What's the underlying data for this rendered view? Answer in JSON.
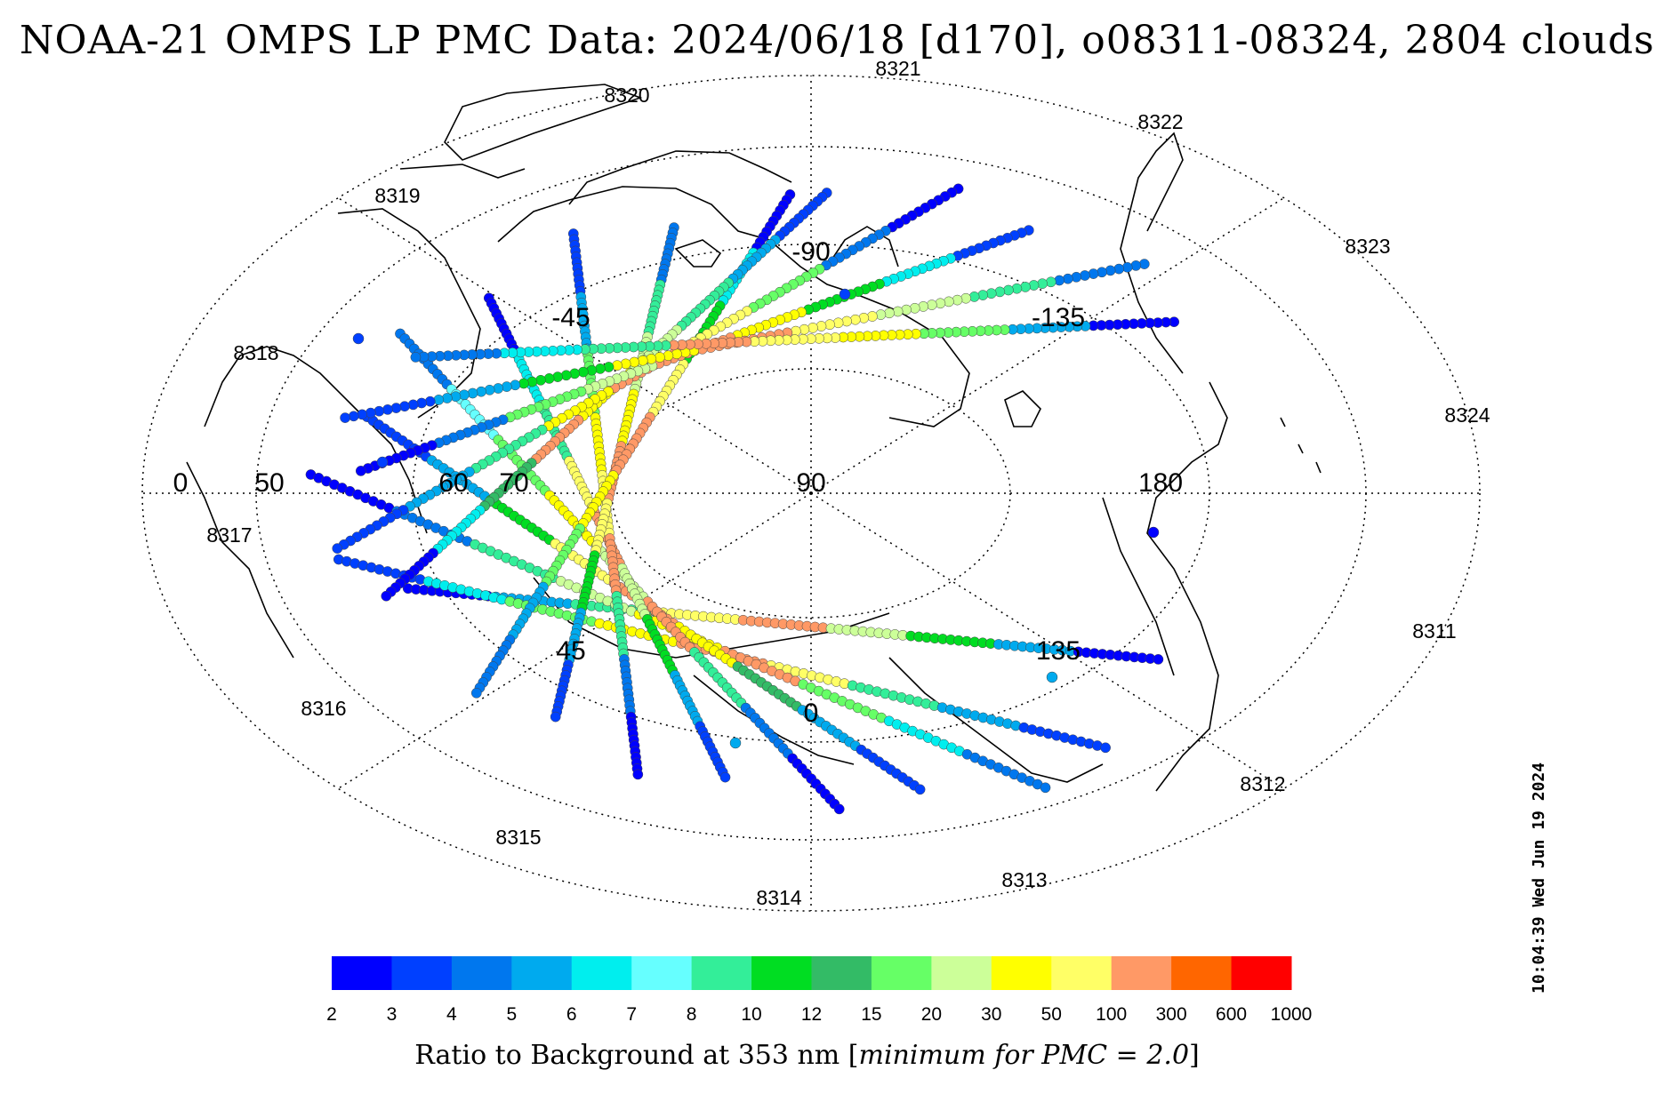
{
  "title": "NOAA-21 OMPS LP PMC Data: 2024/06/18 [d170], o08311-08324, 2804 clouds",
  "timestamp": "10:04:39 Wed Jun 19 2024",
  "colorbar": {
    "label_prefix": "Ratio to Background at 353 nm [",
    "label_italic": "minimum for PMC = 2.0",
    "label_suffix": "]",
    "ticks": [
      "2",
      "3",
      "4",
      "5",
      "6",
      "7",
      "8",
      "10",
      "12",
      "15",
      "20",
      "30",
      "50",
      "100",
      "300",
      "600",
      "1000"
    ],
    "colors": [
      "#0000ff",
      "#0040ff",
      "#0077ee",
      "#00aaee",
      "#00eeee",
      "#66ffff",
      "#33ee99",
      "#00dd22",
      "#33bb66",
      "#66ff66",
      "#ccff99",
      "#ffff00",
      "#ffff66",
      "#ff9966",
      "#ff6600",
      "#ff0000"
    ]
  },
  "map": {
    "projection": "north polar stereographic",
    "latitude_labels": [
      "0",
      "50",
      "60",
      "70",
      "90"
    ],
    "longitude_labels": [
      "-90",
      "-45",
      "-135",
      "180",
      "135",
      "45",
      "0"
    ],
    "orbit_labels": [
      "8321",
      "8320",
      "8322",
      "8319",
      "8323",
      "8318",
      "8324",
      "8317",
      "8311",
      "8316",
      "8312",
      "8315",
      "8313",
      "8314"
    ]
  },
  "tracks": [
    {
      "orbit": "8311",
      "color_seq": [
        "#0000ff",
        "#00aaee",
        "#33ee99",
        "#ffff66",
        "#ff9966",
        "#ccff99",
        "#00dd22",
        "#00aaee",
        "#0000ff"
      ]
    },
    {
      "orbit": "8312",
      "color_seq": [
        "#0040ff",
        "#00eeee",
        "#66ff66",
        "#ffff00",
        "#ff9966",
        "#ffff66",
        "#33ee99",
        "#00aaee",
        "#0040ff"
      ]
    },
    {
      "orbit": "8313",
      "color_seq": [
        "#0000ff",
        "#0077ee",
        "#33ee99",
        "#ccff99",
        "#ffff00",
        "#ff9966",
        "#66ff66",
        "#00eeee",
        "#0077ee"
      ]
    },
    {
      "orbit": "8314",
      "color_seq": [
        "#0040ff",
        "#00aaee",
        "#00dd22",
        "#ffff66",
        "#ff9966",
        "#ffff00",
        "#33bb66",
        "#00aaee",
        "#0040ff"
      ]
    },
    {
      "orbit": "8315",
      "color_seq": [
        "#0077ee",
        "#66ffff",
        "#66ff66",
        "#ffff00",
        "#ccff99",
        "#ff9966",
        "#33ee99",
        "#0077ee",
        "#0000ff"
      ]
    },
    {
      "orbit": "8316",
      "color_seq": [
        "#0000ff",
        "#00eeee",
        "#33ee99",
        "#ffff66",
        "#ff9966",
        "#ccff99",
        "#00dd22",
        "#00aaee",
        "#0040ff"
      ]
    },
    {
      "orbit": "8317",
      "color_seq": [
        "#0040ff",
        "#00aaee",
        "#66ff66",
        "#ffff00",
        "#ffff66",
        "#ff9966",
        "#33ee99",
        "#0077ee",
        "#0000ff"
      ]
    },
    {
      "orbit": "8318",
      "color_seq": [
        "#0077ee",
        "#33ee99",
        "#ccff99",
        "#ffff00",
        "#ff9966",
        "#ffff66",
        "#00dd22",
        "#00aaee",
        "#0040ff"
      ]
    },
    {
      "orbit": "8319",
      "color_seq": [
        "#0000ff",
        "#00eeee",
        "#00dd22",
        "#ffff66",
        "#ff9966",
        "#ffff00",
        "#66ff66",
        "#00aaee",
        "#0077ee"
      ]
    },
    {
      "orbit": "8320",
      "color_seq": [
        "#0040ff",
        "#00aaee",
        "#33ee99",
        "#ccff99",
        "#ffff00",
        "#ff9966",
        "#33bb66",
        "#00eeee",
        "#0000ff"
      ]
    },
    {
      "orbit": "8321",
      "color_seq": [
        "#0000ff",
        "#0077ee",
        "#66ff66",
        "#ffff66",
        "#ff9966",
        "#ffff00",
        "#33ee99",
        "#00aaee",
        "#0040ff"
      ]
    },
    {
      "orbit": "8322",
      "color_seq": [
        "#0040ff",
        "#00eeee",
        "#00dd22",
        "#ffff00",
        "#ff9966",
        "#ccff99",
        "#66ff66",
        "#0077ee",
        "#0000ff"
      ]
    },
    {
      "orbit": "8323",
      "color_seq": [
        "#0077ee",
        "#33ee99",
        "#ccff99",
        "#ffff66",
        "#ff9966",
        "#ffff00",
        "#00dd22",
        "#00aaee",
        "#0040ff"
      ]
    },
    {
      "orbit": "8324",
      "color_seq": [
        "#0000ff",
        "#00aaee",
        "#66ff66",
        "#ffff00",
        "#ffff66",
        "#ff9966",
        "#33ee99",
        "#00eeee",
        "#0077ee"
      ]
    }
  ]
}
